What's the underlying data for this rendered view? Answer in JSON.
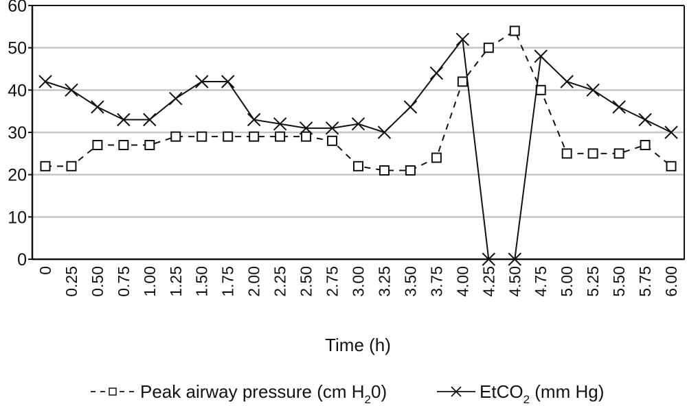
{
  "chart_data": {
    "type": "line",
    "title": "",
    "xlabel": "Time (h)",
    "ylabel": "",
    "ylim": [
      0,
      60
    ],
    "yticks": [
      "0",
      "10",
      "20",
      "30",
      "40",
      "50",
      "60"
    ],
    "grid": true,
    "legend_position": "bottom",
    "categories": [
      "0",
      "0.25",
      "0.50",
      "0.75",
      "1.00",
      "1.25",
      "1.50",
      "1.75",
      "2.00",
      "2.25",
      "2.50",
      "2.75",
      "3.00",
      "3.25",
      "3.50",
      "3.75",
      "4.00",
      "4.25",
      "4.50",
      "4.75",
      "5.00",
      "5.25",
      "5.50",
      "5.75",
      "6.00"
    ],
    "series": [
      {
        "name": "Peak airway pressure (cm H20)",
        "legend_main": "Peak airway pressure (cm H",
        "legend_sub": "2",
        "legend_tail": "0)",
        "style": "dashed",
        "marker": "square",
        "values": [
          22,
          22,
          27,
          27,
          27,
          29,
          29,
          29,
          29,
          29,
          29,
          28,
          22,
          21,
          21,
          24,
          42,
          50,
          54,
          40,
          25,
          25,
          25,
          27,
          22
        ]
      },
      {
        "name": "EtCO2 (mm Hg)",
        "legend_main": "EtCO",
        "legend_sub": "2",
        "legend_tail": " (mm Hg)",
        "style": "solid",
        "marker": "x",
        "values": [
          42,
          40,
          36,
          33,
          33,
          38,
          42,
          42,
          33,
          32,
          31,
          31,
          32,
          30,
          36,
          44,
          52,
          0,
          0,
          48,
          42,
          40,
          36,
          33,
          30
        ]
      }
    ]
  }
}
